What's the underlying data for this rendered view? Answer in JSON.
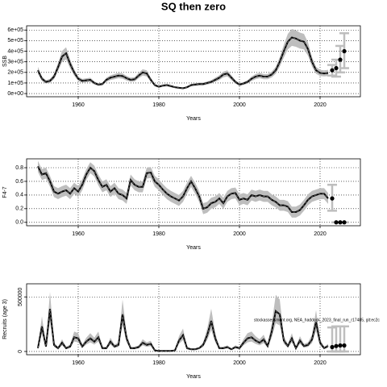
{
  "chart_data": [
    {
      "type": "line",
      "title": "SQ then zero",
      "ylabel": "SSB",
      "xlabel": "Years",
      "x": [
        1950,
        1951,
        1952,
        1953,
        1954,
        1955,
        1956,
        1957,
        1958,
        1959,
        1960,
        1961,
        1962,
        1963,
        1964,
        1965,
        1966,
        1967,
        1968,
        1969,
        1970,
        1971,
        1972,
        1973,
        1974,
        1975,
        1976,
        1977,
        1978,
        1979,
        1980,
        1981,
        1982,
        1983,
        1984,
        1985,
        1986,
        1987,
        1988,
        1989,
        1990,
        1991,
        1992,
        1993,
        1994,
        1995,
        1996,
        1997,
        1998,
        1999,
        2000,
        2001,
        2002,
        2003,
        2004,
        2005,
        2006,
        2007,
        2008,
        2009,
        2010,
        2011,
        2012,
        2013,
        2014,
        2015,
        2016,
        2017,
        2018,
        2019,
        2020,
        2021,
        2022
      ],
      "values": [
        220000,
        140000,
        110000,
        120000,
        160000,
        250000,
        350000,
        380000,
        280000,
        200000,
        140000,
        120000,
        125000,
        130000,
        100000,
        85000,
        90000,
        130000,
        150000,
        160000,
        170000,
        165000,
        145000,
        130000,
        135000,
        170000,
        200000,
        190000,
        130000,
        80000,
        65000,
        75000,
        80000,
        70000,
        60000,
        55000,
        50000,
        60000,
        80000,
        85000,
        90000,
        90000,
        100000,
        110000,
        130000,
        150000,
        180000,
        190000,
        150000,
        110000,
        85000,
        95000,
        110000,
        140000,
        160000,
        170000,
        160000,
        160000,
        180000,
        220000,
        300000,
        400000,
        490000,
        530000,
        520000,
        500000,
        490000,
        420000,
        300000,
        220000,
        195000,
        190000,
        195000
      ],
      "lower": [
        187000,
        119000,
        94000,
        102000,
        136000,
        213000,
        298000,
        323000,
        238000,
        170000,
        119000,
        102000,
        106000,
        111000,
        85000,
        72000,
        77000,
        111000,
        128000,
        136000,
        145000,
        140000,
        123000,
        111000,
        115000,
        145000,
        170000,
        162000,
        111000,
        68000,
        55000,
        64000,
        68000,
        60000,
        51000,
        47000,
        43000,
        51000,
        68000,
        72000,
        77000,
        77000,
        85000,
        94000,
        111000,
        128000,
        153000,
        162000,
        128000,
        94000,
        72000,
        81000,
        94000,
        119000,
        136000,
        145000,
        136000,
        136000,
        153000,
        187000,
        255000,
        340000,
        417000,
        451000,
        442000,
        425000,
        417000,
        357000,
        255000,
        187000,
        166000,
        162000,
        166000
      ],
      "upper": [
        253000,
        161000,
        127000,
        138000,
        184000,
        288000,
        403000,
        437000,
        322000,
        230000,
        161000,
        138000,
        144000,
        150000,
        115000,
        98000,
        104000,
        150000,
        173000,
        184000,
        196000,
        190000,
        167000,
        150000,
        155000,
        196000,
        230000,
        219000,
        150000,
        92000,
        75000,
        86000,
        92000,
        81000,
        69000,
        63000,
        58000,
        69000,
        92000,
        98000,
        104000,
        104000,
        115000,
        127000,
        150000,
        173000,
        207000,
        219000,
        173000,
        127000,
        98000,
        109000,
        127000,
        161000,
        184000,
        196000,
        184000,
        184000,
        207000,
        253000,
        345000,
        460000,
        564000,
        610000,
        598000,
        575000,
        564000,
        483000,
        345000,
        253000,
        224000,
        219000,
        224000
      ],
      "projection": {
        "x": [
          2023,
          2024,
          2025,
          2026
        ],
        "values": [
          220000,
          240000,
          320000,
          400000
        ],
        "lower": [
          170000,
          160000,
          200000,
          240000
        ],
        "upper": [
          270000,
          320000,
          450000,
          570000
        ]
      },
      "xlim": [
        1947.2,
        2030
      ],
      "xticks": [
        1960,
        1980,
        2000,
        2020
      ],
      "ylim": [
        -30000,
        640000
      ],
      "yticks": [
        {
          "value": 0,
          "label": "0e+00"
        },
        {
          "value": 100000,
          "label": "1e+05"
        },
        {
          "value": 200000,
          "label": "2e+05"
        },
        {
          "value": 300000,
          "label": "3e+05"
        },
        {
          "value": 400000,
          "label": "4e+05"
        },
        {
          "value": 500000,
          "label": "5e+05"
        },
        {
          "value": 600000,
          "label": "6e+05"
        }
      ],
      "grid": true,
      "color": "#000000",
      "band_color": "#bebebe"
    },
    {
      "type": "line",
      "ylabel": "F4-7",
      "xlabel": "Years",
      "x": [
        1950,
        1951,
        1952,
        1953,
        1954,
        1955,
        1956,
        1957,
        1958,
        1959,
        1960,
        1961,
        1962,
        1963,
        1964,
        1965,
        1966,
        1967,
        1968,
        1969,
        1970,
        1971,
        1972,
        1973,
        1974,
        1975,
        1976,
        1977,
        1978,
        1979,
        1980,
        1981,
        1982,
        1983,
        1984,
        1985,
        1986,
        1987,
        1988,
        1989,
        1990,
        1991,
        1992,
        1993,
        1994,
        1995,
        1996,
        1997,
        1998,
        1999,
        2000,
        2001,
        2002,
        2003,
        2004,
        2005,
        2006,
        2007,
        2008,
        2009,
        2010,
        2011,
        2012,
        2013,
        2014,
        2015,
        2016,
        2017,
        2018,
        2019,
        2020,
        2021,
        2022
      ],
      "values": [
        0.82,
        0.7,
        0.72,
        0.6,
        0.45,
        0.42,
        0.45,
        0.47,
        0.42,
        0.5,
        0.45,
        0.55,
        0.7,
        0.8,
        0.75,
        0.62,
        0.52,
        0.55,
        0.45,
        0.5,
        0.42,
        0.4,
        0.35,
        0.62,
        0.55,
        0.52,
        0.52,
        0.72,
        0.73,
        0.6,
        0.55,
        0.48,
        0.42,
        0.38,
        0.35,
        0.32,
        0.38,
        0.5,
        0.6,
        0.5,
        0.38,
        0.2,
        0.22,
        0.28,
        0.3,
        0.35,
        0.28,
        0.38,
        0.42,
        0.43,
        0.33,
        0.35,
        0.33,
        0.4,
        0.38,
        0.4,
        0.38,
        0.38,
        0.33,
        0.3,
        0.25,
        0.25,
        0.23,
        0.15,
        0.15,
        0.18,
        0.25,
        0.33,
        0.38,
        0.4,
        0.42,
        0.42,
        0.35
      ],
      "lower": [
        0.74,
        0.62,
        0.64,
        0.52,
        0.37,
        0.34,
        0.37,
        0.39,
        0.34,
        0.42,
        0.37,
        0.47,
        0.62,
        0.72,
        0.67,
        0.54,
        0.44,
        0.47,
        0.37,
        0.42,
        0.34,
        0.32,
        0.27,
        0.54,
        0.47,
        0.44,
        0.44,
        0.64,
        0.65,
        0.52,
        0.47,
        0.4,
        0.34,
        0.3,
        0.27,
        0.24,
        0.3,
        0.42,
        0.52,
        0.42,
        0.3,
        0.12,
        0.14,
        0.2,
        0.22,
        0.27,
        0.2,
        0.3,
        0.34,
        0.35,
        0.25,
        0.27,
        0.25,
        0.32,
        0.3,
        0.32,
        0.3,
        0.3,
        0.25,
        0.22,
        0.17,
        0.17,
        0.15,
        0.07,
        0.07,
        0.1,
        0.17,
        0.25,
        0.3,
        0.32,
        0.34,
        0.34,
        0.27
      ],
      "upper": [
        0.9,
        0.78,
        0.8,
        0.68,
        0.53,
        0.5,
        0.53,
        0.55,
        0.5,
        0.58,
        0.53,
        0.63,
        0.78,
        0.88,
        0.83,
        0.7,
        0.6,
        0.63,
        0.53,
        0.58,
        0.5,
        0.48,
        0.43,
        0.7,
        0.63,
        0.6,
        0.6,
        0.8,
        0.81,
        0.68,
        0.63,
        0.56,
        0.5,
        0.46,
        0.43,
        0.4,
        0.46,
        0.58,
        0.68,
        0.58,
        0.46,
        0.28,
        0.3,
        0.36,
        0.38,
        0.43,
        0.36,
        0.46,
        0.5,
        0.51,
        0.41,
        0.43,
        0.41,
        0.48,
        0.46,
        0.48,
        0.46,
        0.46,
        0.41,
        0.38,
        0.33,
        0.33,
        0.31,
        0.23,
        0.23,
        0.26,
        0.33,
        0.41,
        0.46,
        0.48,
        0.5,
        0.5,
        0.43
      ],
      "projection": {
        "x": [
          2023,
          2024,
          2025,
          2026
        ],
        "values": [
          0.35,
          0,
          0,
          0
        ],
        "lower": [
          0.17,
          0,
          0,
          0
        ],
        "upper": [
          0.55,
          0,
          0,
          0
        ]
      },
      "xlim": [
        1947.2,
        2030
      ],
      "xticks": [
        1960,
        1980,
        2000,
        2020
      ],
      "ylim": [
        -0.05,
        0.93
      ],
      "yticks": [
        {
          "value": 0,
          "label": "0.0"
        },
        0.2,
        0.4,
        0.6,
        0.8
      ],
      "grid": true,
      "color": "#000000",
      "band_color": "#bebebe"
    },
    {
      "type": "line",
      "ylabel": "Recruits (age 3)",
      "xlabel": "Years",
      "annotation": "stockassessment.org, NEA_haddock_2023_final_run_r17485, git:ec2c",
      "x": [
        1950,
        1951,
        1952,
        1953,
        1954,
        1955,
        1956,
        1957,
        1958,
        1959,
        1960,
        1961,
        1962,
        1963,
        1964,
        1965,
        1966,
        1967,
        1968,
        1969,
        1970,
        1971,
        1972,
        1973,
        1974,
        1975,
        1976,
        1977,
        1978,
        1979,
        1980,
        1981,
        1982,
        1983,
        1984,
        1985,
        1986,
        1987,
        1988,
        1989,
        1990,
        1991,
        1992,
        1993,
        1994,
        1995,
        1996,
        1997,
        1998,
        1999,
        2000,
        2001,
        2002,
        2003,
        2004,
        2005,
        2006,
        2007,
        2008,
        2009,
        2010,
        2011,
        2012,
        2013,
        2014,
        2015,
        2016,
        2017,
        2018,
        2019,
        2020,
        2021,
        2022
      ],
      "values": [
        30000,
        230000,
        45000,
        390000,
        60000,
        30000,
        80000,
        30000,
        45000,
        130000,
        120000,
        45000,
        90000,
        120000,
        90000,
        130000,
        30000,
        30000,
        90000,
        45000,
        60000,
        340000,
        120000,
        30000,
        30000,
        40000,
        80000,
        60000,
        70000,
        10000,
        5000,
        5000,
        5000,
        5000,
        10000,
        100000,
        150000,
        30000,
        20000,
        20000,
        30000,
        60000,
        150000,
        280000,
        120000,
        30000,
        30000,
        40000,
        20000,
        40000,
        30000,
        80000,
        120000,
        130000,
        100000,
        80000,
        110000,
        50000,
        180000,
        370000,
        340000,
        100000,
        50000,
        120000,
        30000,
        100000,
        50000,
        60000,
        110000,
        270000,
        80000,
        30000,
        50000
      ],
      "lower": [
        21000,
        161000,
        32000,
        273000,
        42000,
        21000,
        56000,
        21000,
        32000,
        91000,
        84000,
        32000,
        63000,
        84000,
        63000,
        91000,
        21000,
        21000,
        63000,
        32000,
        42000,
        238000,
        84000,
        21000,
        21000,
        28000,
        56000,
        42000,
        49000,
        7000,
        4000,
        4000,
        4000,
        4000,
        7000,
        70000,
        105000,
        21000,
        14000,
        14000,
        21000,
        42000,
        105000,
        196000,
        84000,
        21000,
        21000,
        28000,
        14000,
        28000,
        21000,
        56000,
        84000,
        91000,
        70000,
        56000,
        77000,
        35000,
        126000,
        259000,
        238000,
        70000,
        35000,
        84000,
        21000,
        70000,
        35000,
        42000,
        77000,
        189000,
        56000,
        21000,
        35000
      ],
      "upper": [
        42000,
        322000,
        63000,
        546000,
        84000,
        42000,
        112000,
        42000,
        63000,
        182000,
        168000,
        63000,
        126000,
        168000,
        126000,
        182000,
        42000,
        42000,
        126000,
        63000,
        84000,
        476000,
        168000,
        42000,
        42000,
        56000,
        112000,
        84000,
        98000,
        14000,
        7000,
        7000,
        7000,
        7000,
        14000,
        140000,
        210000,
        42000,
        28000,
        28000,
        42000,
        84000,
        210000,
        392000,
        168000,
        42000,
        42000,
        56000,
        28000,
        56000,
        42000,
        112000,
        168000,
        182000,
        140000,
        112000,
        154000,
        70000,
        252000,
        518000,
        476000,
        140000,
        70000,
        168000,
        42000,
        140000,
        70000,
        84000,
        154000,
        378000,
        112000,
        42000,
        70000
      ],
      "projection": {
        "x": [
          2023,
          2024,
          2025,
          2026
        ],
        "values": [
          40000,
          50000,
          55000,
          55000
        ],
        "lower": [
          0,
          0,
          0,
          0
        ],
        "upper": [
          220000,
          230000,
          230000,
          230000
        ]
      },
      "xlim": [
        1947.2,
        2030
      ],
      "xticks": [
        1960,
        1980,
        2000,
        2020
      ],
      "ylim": [
        -30000,
        620000
      ],
      "yticks": [
        0,
        500000
      ],
      "grid": true,
      "color": "#000000",
      "band_color": "#bebebe"
    }
  ]
}
